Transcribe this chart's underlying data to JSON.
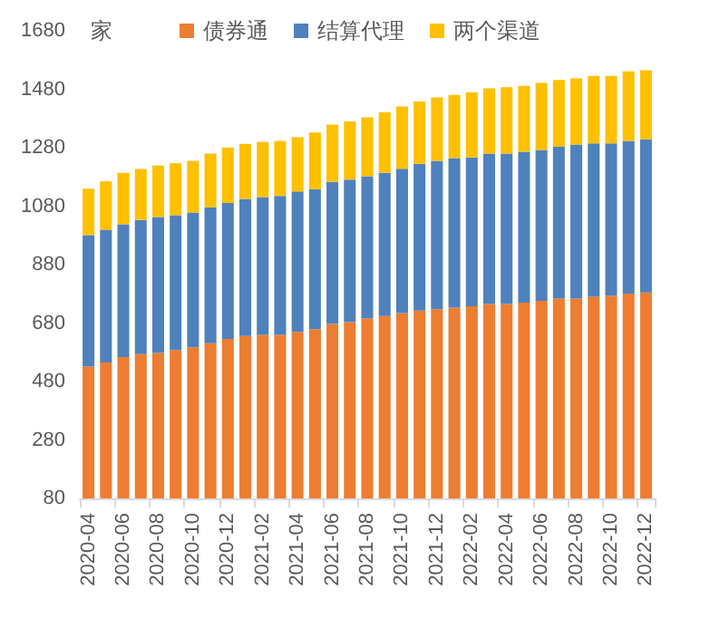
{
  "chart_data": {
    "type": "bar",
    "stacked": true,
    "ylabel": "家",
    "categories": [
      "2020-04",
      null,
      "2020-06",
      null,
      "2020-08",
      null,
      "2020-10",
      null,
      "2020-12",
      null,
      "2021-02",
      null,
      "2021-04",
      null,
      "2021-06",
      null,
      "2021-08",
      null,
      "2021-10",
      null,
      "2021-12",
      null,
      "2022-02",
      null,
      "2022-04",
      null,
      "2022-06",
      null,
      "2022-08",
      null,
      "2022-10",
      null,
      "2022-12"
    ],
    "series": [
      {
        "name": "债券通",
        "color": "#ed7d31",
        "values": [
          531,
          545,
          564,
          574,
          578,
          588,
          597,
          611,
          626,
          636,
          640,
          640,
          650,
          659,
          677,
          683,
          696,
          704,
          714,
          723,
          727,
          733,
          737,
          745,
          745,
          750,
          756,
          764,
          764,
          770,
          774,
          781,
          785
        ]
      },
      {
        "name": "结算代理",
        "color": "#4f81bd",
        "values": [
          450,
          454,
          454,
          459,
          465,
          461,
          461,
          465,
          465,
          469,
          471,
          475,
          480,
          479,
          486,
          488,
          486,
          490,
          494,
          502,
          508,
          511,
          510,
          515,
          515,
          516,
          516,
          519,
          527,
          525,
          521,
          522,
          524
        ]
      },
      {
        "name": "两个渠道",
        "color": "#ffc000",
        "values": [
          159,
          166,
          176,
          174,
          176,
          178,
          177,
          184,
          190,
          188,
          189,
          188,
          186,
          194,
          196,
          199,
          202,
          207,
          213,
          213,
          217,
          217,
          222,
          223,
          227,
          226,
          230,
          229,
          226,
          231,
          231,
          238,
          236
        ]
      }
    ],
    "ylim": [
      80,
      1680
    ],
    "yticks": [
      80,
      280,
      480,
      680,
      880,
      1080,
      1280,
      1480,
      1680
    ],
    "grid": false,
    "legend": "top"
  }
}
